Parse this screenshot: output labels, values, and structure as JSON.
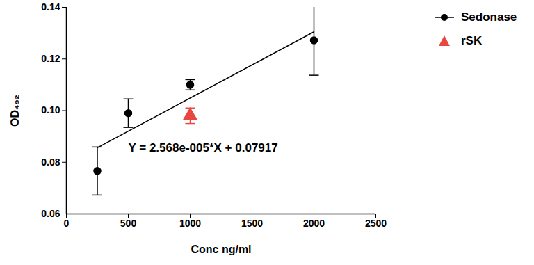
{
  "chart_data": {
    "type": "scatter",
    "x_label": "Conc ng/ml",
    "y_label": "OD₄₉₂",
    "xlim": [
      0,
      2500
    ],
    "xticks": [
      0,
      500,
      1000,
      1500,
      2000,
      2500
    ],
    "ylim": [
      0.06,
      0.14
    ],
    "yticks": [
      0.06,
      0.08,
      {
        "value": 0.1,
        "label": "0.10"
      },
      0.12,
      0.14
    ],
    "legend": "right",
    "series": [
      {
        "name": "Sedonase",
        "color": "#000000",
        "marker": "circle",
        "x": [
          250,
          500,
          1000,
          2000
        ],
        "values": [
          0.0766,
          0.099,
          0.11,
          0.1272
        ],
        "errors": [
          0.0093,
          0.0055,
          0.002,
          0.0135
        ],
        "fit": {
          "x": [
            250,
            2000
          ],
          "values": [
            0.0856,
            0.1305
          ]
        }
      },
      {
        "name": "rSK",
        "color": "#e8463f",
        "marker": "triangle",
        "x": [
          1000
        ],
        "values": [
          0.098
        ],
        "errors": [
          0.003
        ]
      }
    ],
    "annotations": [
      {
        "text": "Y = 2.568e-005*X + 0.07917"
      }
    ]
  }
}
